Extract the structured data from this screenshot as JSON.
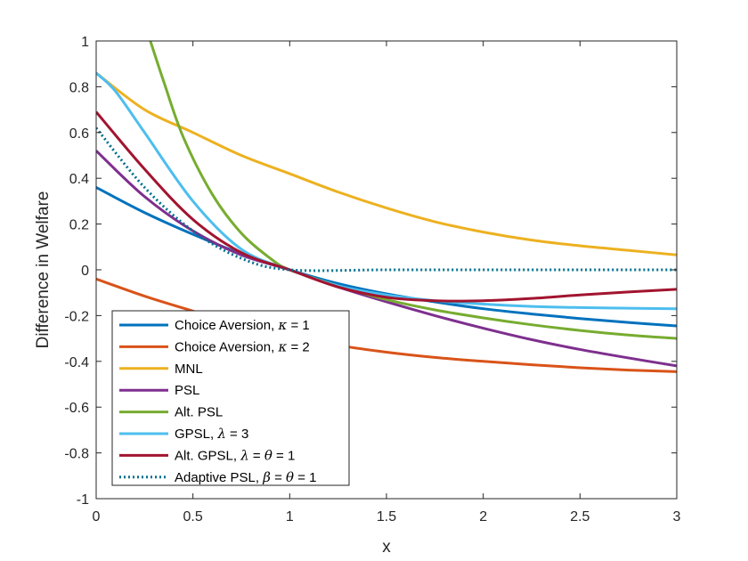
{
  "chart_data": {
    "type": "line",
    "title": "",
    "xlabel": "x",
    "ylabel": "Difference in Welfare",
    "xlim": [
      0,
      3
    ],
    "ylim": [
      -1,
      1
    ],
    "xticks": [
      0,
      0.5,
      1,
      1.5,
      2,
      2.5,
      3
    ],
    "xtick_labels": [
      "0",
      "0.5",
      "1",
      "1.5",
      "2",
      "2.5",
      "3"
    ],
    "yticks": [
      -1,
      -0.8,
      -0.6,
      -0.4,
      -0.2,
      0,
      0.2,
      0.4,
      0.6,
      0.8,
      1
    ],
    "ytick_labels": [
      "-1",
      "-0.8",
      "-0.6",
      "-0.4",
      "-0.2",
      "0",
      "0.2",
      "0.4",
      "0.6",
      "0.8",
      "1"
    ],
    "grid": false,
    "legend_position": "bottom-left",
    "series": [
      {
        "name": "Choice Aversion, κ = 1",
        "legend_parts": [
          "Choice Aversion, ",
          "κ",
          " = 1"
        ],
        "color": "#0072BD",
        "dash": "solid",
        "x": [
          0,
          0.25,
          0.5,
          0.75,
          1,
          1.25,
          1.5,
          1.75,
          2,
          2.25,
          2.5,
          2.75,
          3
        ],
        "y": [
          0.36,
          0.25,
          0.155,
          0.07,
          0,
          -0.06,
          -0.105,
          -0.14,
          -0.17,
          -0.193,
          -0.213,
          -0.23,
          -0.245
        ]
      },
      {
        "name": "Choice Aversion, κ = 2",
        "legend_parts": [
          "Choice Aversion, ",
          "κ",
          " = 2"
        ],
        "color": "#D95319",
        "dash": "solid",
        "x": [
          0,
          0.25,
          0.5,
          0.75,
          1,
          1.25,
          1.5,
          1.75,
          2,
          2.25,
          2.5,
          2.75,
          3
        ],
        "y": [
          -0.04,
          -0.115,
          -0.18,
          -0.24,
          -0.29,
          -0.33,
          -0.36,
          -0.383,
          -0.4,
          -0.415,
          -0.428,
          -0.438,
          -0.445
        ]
      },
      {
        "name": "MNL",
        "legend_parts": [
          "MNL"
        ],
        "color": "#EDB120",
        "dash": "solid",
        "x": [
          0,
          0.25,
          0.5,
          0.75,
          1,
          1.25,
          1.5,
          1.75,
          2,
          2.25,
          2.5,
          2.75,
          3
        ],
        "y": [
          0.86,
          0.7,
          0.6,
          0.5,
          0.42,
          0.34,
          0.27,
          0.21,
          0.165,
          0.13,
          0.105,
          0.085,
          0.065
        ]
      },
      {
        "name": "PSL",
        "legend_parts": [
          "PSL"
        ],
        "color": "#7E2F8E",
        "dash": "solid",
        "x": [
          0,
          0.25,
          0.5,
          0.75,
          1,
          1.25,
          1.5,
          1.75,
          2,
          2.25,
          2.5,
          2.75,
          3
        ],
        "y": [
          0.52,
          0.32,
          0.17,
          0.065,
          0,
          -0.075,
          -0.14,
          -0.2,
          -0.255,
          -0.305,
          -0.348,
          -0.385,
          -0.42
        ]
      },
      {
        "name": "Alt. PSL",
        "legend_parts": [
          "Alt. PSL"
        ],
        "color": "#77AC30",
        "dash": "solid",
        "x": [
          0.28,
          0.35,
          0.45,
          0.6,
          0.75,
          0.9,
          1,
          1.25,
          1.5,
          1.75,
          2,
          2.25,
          2.5,
          2.75,
          3
        ],
        "y": [
          1,
          0.82,
          0.58,
          0.33,
          0.16,
          0.05,
          0,
          -0.07,
          -0.13,
          -0.175,
          -0.21,
          -0.24,
          -0.265,
          -0.285,
          -0.3
        ]
      },
      {
        "name": "GPSL, λ = 3",
        "legend_parts": [
          "GPSL, ",
          "λ",
          " = 3"
        ],
        "color": "#4DBEEE",
        "dash": "solid",
        "x": [
          0,
          0.1,
          0.25,
          0.5,
          0.75,
          1,
          1.25,
          1.5,
          1.75,
          2,
          2.25,
          2.5,
          2.75,
          3
        ],
        "y": [
          0.86,
          0.78,
          0.6,
          0.3,
          0.09,
          0,
          -0.07,
          -0.11,
          -0.135,
          -0.15,
          -0.16,
          -0.165,
          -0.168,
          -0.17
        ]
      },
      {
        "name": "Alt. GPSL, λ = θ = 1",
        "legend_parts": [
          "Alt. GPSL, ",
          "λ",
          " = ",
          "θ",
          " = 1"
        ],
        "color": "#A2142F",
        "dash": "solid",
        "x": [
          0,
          0.25,
          0.5,
          0.75,
          1,
          1.25,
          1.5,
          1.75,
          2,
          2.25,
          2.5,
          2.75,
          3
        ],
        "y": [
          0.69,
          0.44,
          0.22,
          0.075,
          0,
          -0.075,
          -0.12,
          -0.135,
          -0.135,
          -0.125,
          -0.11,
          -0.097,
          -0.085
        ]
      },
      {
        "name": "Adaptive PSL, β = θ = 1",
        "legend_parts": [
          "Adaptive PSL, ",
          "β",
          " = ",
          "θ",
          " = 1"
        ],
        "color": "#006F8E",
        "dash": "dotted",
        "x": [
          0,
          0.25,
          0.5,
          0.75,
          1,
          1.5,
          2,
          2.5,
          3
        ],
        "y": [
          0.62,
          0.36,
          0.17,
          0.05,
          0,
          0,
          0,
          0,
          0
        ]
      }
    ]
  }
}
